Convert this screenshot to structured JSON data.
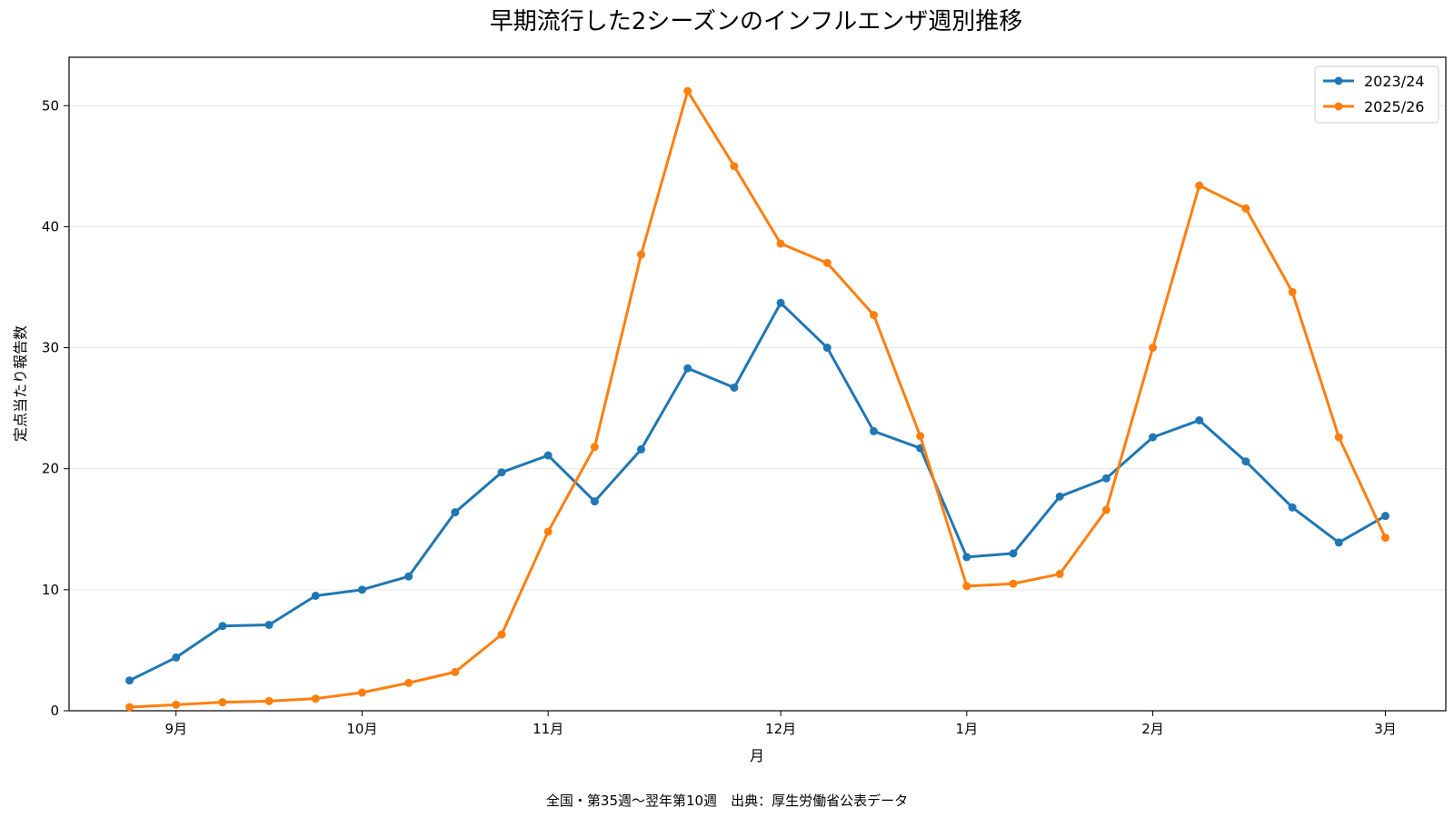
{
  "chart_data": {
    "type": "line",
    "title": "早期流行した2シーズンのインフルエンザ週別推移",
    "xlabel": "月",
    "ylabel": "定点当たり報告数",
    "footnote": "全国・第35週〜翌年第10週　出典：厚生労働省公表データ",
    "ylim": [
      0,
      54
    ],
    "yticks": [
      0,
      10,
      20,
      30,
      40,
      50
    ],
    "xlim": [
      -1.3,
      28.3
    ],
    "xticks": [
      {
        "pos": 1,
        "label": "9月"
      },
      {
        "pos": 5,
        "label": "10月"
      },
      {
        "pos": 9,
        "label": "11月"
      },
      {
        "pos": 14,
        "label": "12月"
      },
      {
        "pos": 18,
        "label": "1月"
      },
      {
        "pos": 22,
        "label": "2月"
      },
      {
        "pos": 27,
        "label": "3月"
      }
    ],
    "x": [
      0,
      1,
      2,
      3,
      4,
      5,
      6,
      7,
      8,
      9,
      10,
      11,
      12,
      13,
      14,
      15,
      16,
      17,
      18,
      19,
      20,
      21,
      22,
      23,
      24,
      25,
      26,
      27
    ],
    "series": [
      {
        "name": "2023/24",
        "color": "#1f77b4",
        "values": [
          2.5,
          4.4,
          7.0,
          7.1,
          9.5,
          10.0,
          11.1,
          16.4,
          19.7,
          21.1,
          17.3,
          21.6,
          28.3,
          26.7,
          33.7,
          30.0,
          23.1,
          21.7,
          12.7,
          13.0,
          17.7,
          19.2,
          22.6,
          24.0,
          20.6,
          16.8,
          13.9,
          16.1
        ]
      },
      {
        "name": "2025/26",
        "color": "#ff7f0e",
        "values": [
          0.3,
          0.5,
          0.7,
          0.8,
          1.0,
          1.5,
          2.3,
          3.2,
          6.3,
          14.8,
          21.8,
          37.7,
          51.2,
          45.0,
          38.6,
          37.0,
          32.7,
          22.7,
          10.3,
          10.5,
          11.3,
          16.6,
          30.0,
          43.4,
          41.5,
          34.6,
          22.6,
          14.3
        ]
      }
    ],
    "grid": "horizontal",
    "legend": "top-right"
  }
}
